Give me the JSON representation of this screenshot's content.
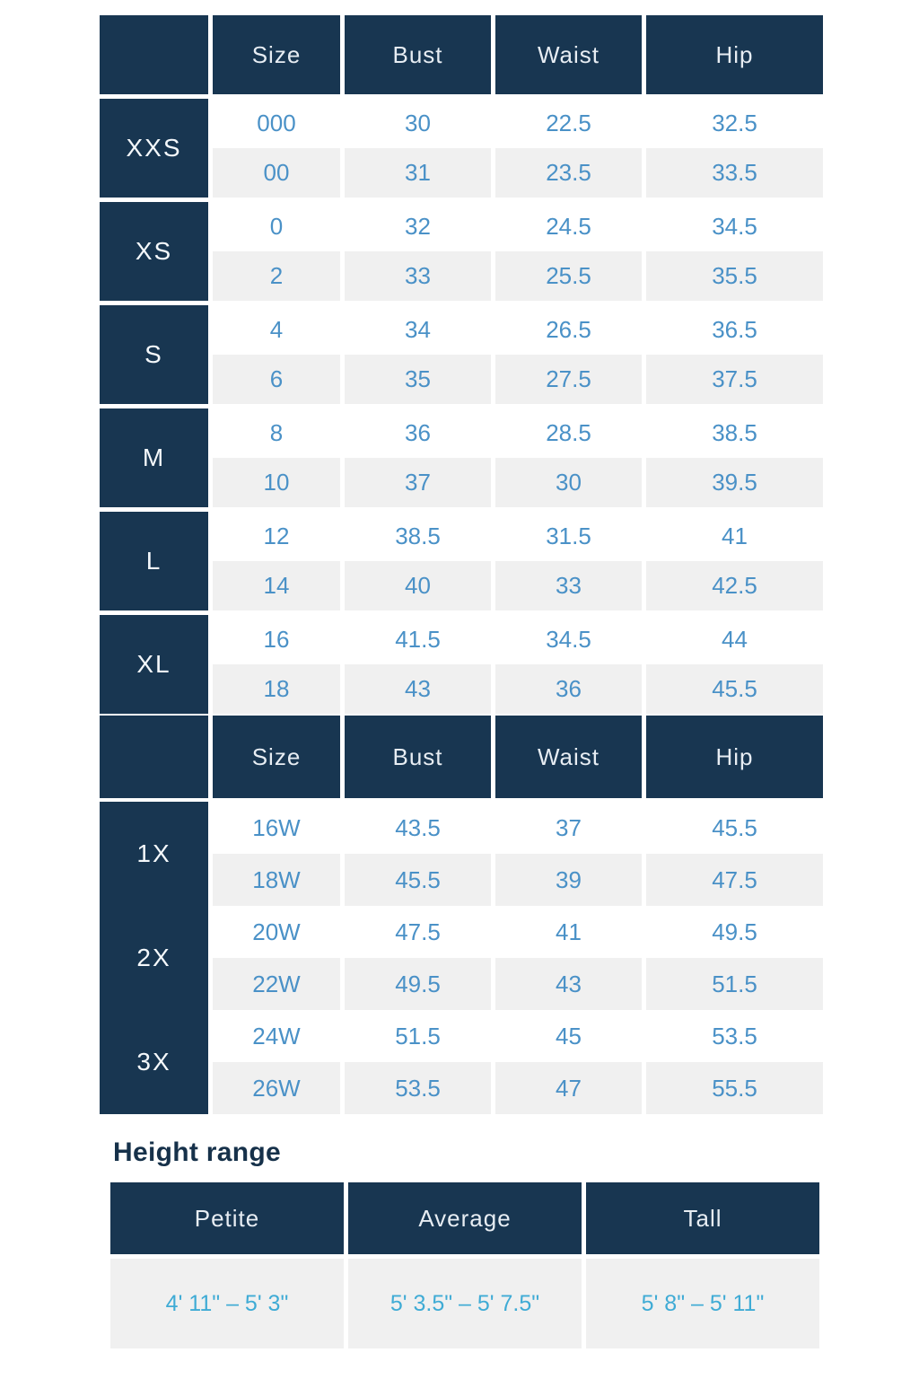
{
  "colors": {
    "navy": "#183651",
    "header_text": "#E7EDF3",
    "data_blue": "#4A91C7",
    "height_blue": "#3FABD5",
    "row_gray": "#F0F0F0",
    "row_white": "#FFFFFF",
    "title_navy": "#16314A"
  },
  "standard_table": {
    "headers": [
      "",
      "Size",
      "Bust",
      "Waist",
      "Hip"
    ],
    "groups": [
      {
        "label": "XXS",
        "rows": [
          [
            "000",
            "30",
            "22.5",
            "32.5"
          ],
          [
            "00",
            "31",
            "23.5",
            "33.5"
          ]
        ]
      },
      {
        "label": "XS",
        "rows": [
          [
            "0",
            "32",
            "24.5",
            "34.5"
          ],
          [
            "2",
            "33",
            "25.5",
            "35.5"
          ]
        ]
      },
      {
        "label": "S",
        "rows": [
          [
            "4",
            "34",
            "26.5",
            "36.5"
          ],
          [
            "6",
            "35",
            "27.5",
            "37.5"
          ]
        ]
      },
      {
        "label": "M",
        "rows": [
          [
            "8",
            "36",
            "28.5",
            "38.5"
          ],
          [
            "10",
            "37",
            "30",
            "39.5"
          ]
        ]
      },
      {
        "label": "L",
        "rows": [
          [
            "12",
            "38.5",
            "31.5",
            "41"
          ],
          [
            "14",
            "40",
            "33",
            "42.5"
          ]
        ]
      },
      {
        "label": "XL",
        "rows": [
          [
            "16",
            "41.5",
            "34.5",
            "44"
          ],
          [
            "18",
            "43",
            "36",
            "45.5"
          ]
        ]
      }
    ]
  },
  "plus_table": {
    "headers": [
      "",
      "Size",
      "Bust",
      "Waist",
      "Hip"
    ],
    "groups": [
      {
        "label": "1X",
        "rows": [
          [
            "16W",
            "43.5",
            "37",
            "45.5"
          ],
          [
            "18W",
            "45.5",
            "39",
            "47.5"
          ]
        ]
      },
      {
        "label": "2X",
        "rows": [
          [
            "20W",
            "47.5",
            "41",
            "49.5"
          ],
          [
            "22W",
            "49.5",
            "43",
            "51.5"
          ]
        ]
      },
      {
        "label": "3X",
        "rows": [
          [
            "24W",
            "51.5",
            "45",
            "53.5"
          ],
          [
            "26W",
            "53.5",
            "47",
            "55.5"
          ]
        ]
      }
    ]
  },
  "height_section": {
    "title": "Height range",
    "headers": [
      "Petite",
      "Average",
      "Tall"
    ],
    "values": [
      "4' 11\" – 5' 3\"",
      "5' 3.5\" – 5' 7.5\"",
      "5' 8\" – 5' 11\""
    ]
  },
  "chart_data": [
    {
      "type": "table",
      "title": "",
      "columns": [
        "",
        "Size",
        "Bust",
        "Waist",
        "Hip"
      ],
      "rows": [
        [
          "XXS",
          "000",
          30,
          22.5,
          32.5
        ],
        [
          "XXS",
          "00",
          31,
          23.5,
          33.5
        ],
        [
          "XS",
          "0",
          32,
          24.5,
          34.5
        ],
        [
          "XS",
          "2",
          33,
          25.5,
          35.5
        ],
        [
          "S",
          "4",
          34,
          26.5,
          36.5
        ],
        [
          "S",
          "6",
          35,
          27.5,
          37.5
        ],
        [
          "M",
          "8",
          36,
          28.5,
          38.5
        ],
        [
          "M",
          "10",
          37,
          30,
          39.5
        ],
        [
          "L",
          "12",
          38.5,
          31.5,
          41
        ],
        [
          "L",
          "14",
          40,
          33,
          42.5
        ],
        [
          "XL",
          "16",
          41.5,
          34.5,
          44
        ],
        [
          "XL",
          "18",
          43,
          36,
          45.5
        ]
      ]
    },
    {
      "type": "table",
      "title": "",
      "columns": [
        "",
        "Size",
        "Bust",
        "Waist",
        "Hip"
      ],
      "rows": [
        [
          "1X",
          "16W",
          43.5,
          37,
          45.5
        ],
        [
          "1X",
          "18W",
          45.5,
          39,
          47.5
        ],
        [
          "2X",
          "20W",
          47.5,
          41,
          49.5
        ],
        [
          "2X",
          "22W",
          49.5,
          43,
          51.5
        ],
        [
          "3X",
          "24W",
          51.5,
          45,
          53.5
        ],
        [
          "3X",
          "26W",
          53.5,
          47,
          55.5
        ]
      ]
    },
    {
      "type": "table",
      "title": "Height range",
      "columns": [
        "Petite",
        "Average",
        "Tall"
      ],
      "rows": [
        [
          "4' 11\" – 5' 3\"",
          "5' 3.5\" – 5' 7.5\"",
          "5' 8\" – 5' 11\""
        ]
      ]
    }
  ]
}
